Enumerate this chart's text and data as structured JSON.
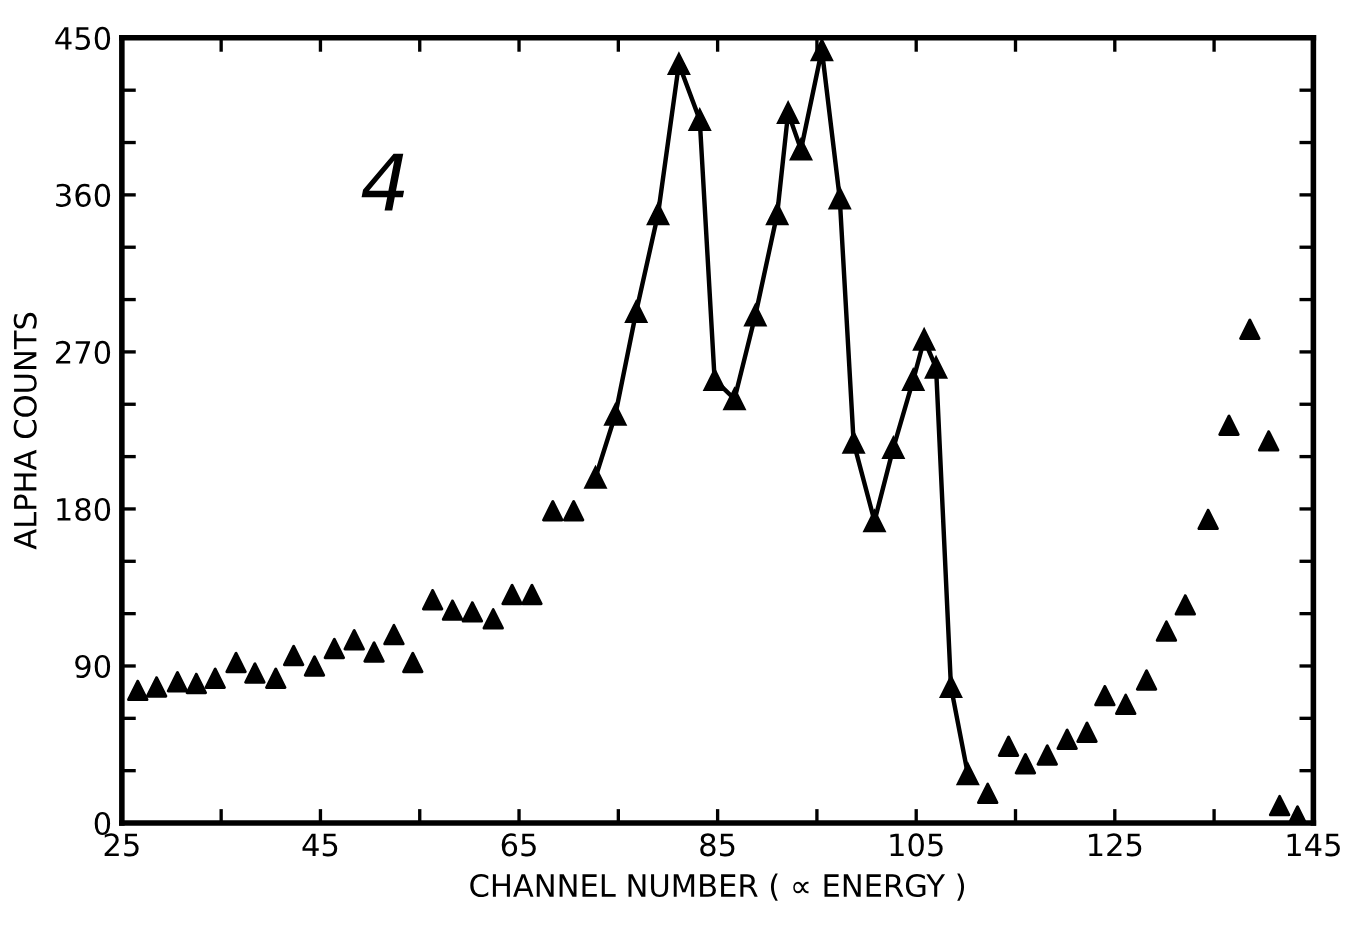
{
  "chart_data": {
    "type": "scatter",
    "xlabel": "CHANNEL NUMBER ( ∝ ENERGY )",
    "ylabel": "ALPHA COUNTS",
    "annotations": [
      "4"
    ],
    "marker": "triangle",
    "grid": false,
    "xlim": [
      25,
      145
    ],
    "ylim": [
      0,
      450
    ],
    "xticks": [
      25,
      {
        "value": 35,
        "label": null
      },
      45,
      {
        "value": 55,
        "label": null
      },
      65,
      {
        "value": 75,
        "label": null
      },
      85,
      {
        "value": 95,
        "label": null
      },
      105,
      {
        "value": 115,
        "label": null
      },
      125,
      {
        "value": 135,
        "label": null
      },
      145
    ],
    "yticks": [
      0,
      {
        "value": 30,
        "label": null
      },
      {
        "value": 60,
        "label": null
      },
      90,
      {
        "value": 120,
        "label": null
      },
      {
        "value": 150,
        "label": null
      },
      180,
      {
        "value": 210,
        "label": null
      },
      {
        "value": 240,
        "label": null
      },
      270,
      {
        "value": 300,
        "label": null
      },
      {
        "value": 330,
        "label": null
      },
      360,
      {
        "value": 390,
        "label": null
      },
      {
        "value": 420,
        "label": null
      },
      450
    ],
    "series": [
      {
        "color": "#000000",
        "x": [
          26.6,
          28.5,
          30.6,
          32.5,
          34.4,
          36.5,
          38.4,
          40.5,
          42.3,
          44.4,
          46.4,
          48.4,
          50.4,
          52.4,
          54.3,
          56.3,
          58.3,
          60.3,
          62.4,
          64.3,
          66.3,
          68.4,
          70.5
        ],
        "values": [
          76,
          78,
          81,
          80,
          83,
          92,
          86,
          83,
          96,
          90,
          100,
          105,
          98,
          108,
          92,
          128,
          122,
          121,
          117,
          131,
          131,
          179,
          179
        ]
      },
      {
        "type": "line",
        "color": "#000000",
        "x": [
          72.7,
          74.7,
          76.8,
          79.0,
          81.1,
          83.2,
          84.7,
          86.7,
          88.8,
          91.0,
          92.1,
          93.4,
          95.5,
          97.3,
          98.7,
          100.8,
          102.7,
          104.7,
          105.8,
          107.0,
          108.5,
          110.2
        ],
        "values": [
          198,
          234,
          293,
          349,
          435,
          403,
          254,
          243,
          291,
          349,
          407,
          386,
          443,
          358,
          218,
          173,
          215,
          254,
          277,
          261,
          78,
          28
        ]
      },
      {
        "color": "#000000",
        "x": [
          112.2,
          114.3,
          116.0,
          118.2,
          120.2,
          122.2,
          124.0,
          126.1,
          128.2,
          130.2,
          132.1,
          134.4,
          136.5,
          138.6,
          140.5,
          141.6,
          143.4
        ],
        "values": [
          17,
          44,
          34,
          39,
          48,
          52,
          73,
          68,
          82,
          110,
          125,
          174,
          228,
          283,
          219,
          10,
          4
        ]
      }
    ]
  }
}
